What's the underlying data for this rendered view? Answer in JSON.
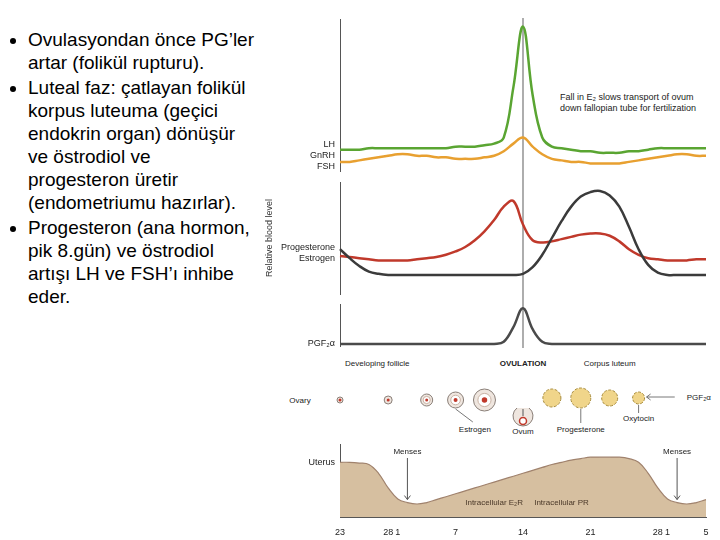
{
  "bullets": [
    "Ovulasyondan önce PG’ler artar (folikül rupturu).",
    "Luteal faz: çatlayan folikül korpus luteuma (geçici endokrin organ) dönüşür ve östrodiol ve progesteron üretir (endometriumu hazırlar).",
    "Progesteron (ana hormon, pik 8.gün) ve östrodiol artışı LH ve FSH’ı inhibe eder."
  ],
  "chart_data": [
    {
      "type": "line",
      "categories": [
        23,
        null,
        null,
        null,
        null,
        28,
        1,
        null,
        null,
        null,
        null,
        null,
        7,
        null,
        null,
        null,
        null,
        null,
        null,
        14,
        null,
        null,
        null,
        null,
        null,
        null,
        21,
        null,
        null,
        null,
        null,
        null,
        null,
        28,
        1,
        null,
        null,
        null,
        5
      ],
      "series": [
        {
          "name": "LH",
          "color": "#5aa532",
          "values": [
            14,
            14,
            14,
            15,
            15,
            15,
            15,
            15,
            15,
            15,
            15,
            15,
            16,
            16,
            16,
            17,
            18,
            22,
            55,
            95,
            50,
            22,
            16,
            15,
            14,
            13,
            13,
            12,
            12,
            12,
            13,
            13,
            14,
            15,
            15,
            15,
            15,
            15,
            15
          ]
        },
        {
          "name": "FSH",
          "color": "#e8a030",
          "values": [
            6,
            6,
            7,
            8,
            9,
            10,
            11,
            11,
            10,
            10,
            9,
            9,
            8,
            8,
            8,
            9,
            10,
            13,
            18,
            22,
            16,
            11,
            8,
            7,
            6,
            6,
            5,
            5,
            5,
            5,
            6,
            7,
            8,
            9,
            10,
            11,
            11,
            10,
            10
          ]
        }
      ],
      "ylim": [
        0,
        100
      ],
      "tick_labels": false
    },
    {
      "type": "line",
      "y_label": "Relative blood level",
      "categories": [
        23,
        null,
        null,
        null,
        null,
        28,
        1,
        null,
        null,
        null,
        null,
        null,
        7,
        null,
        null,
        null,
        null,
        null,
        null,
        14,
        null,
        null,
        null,
        null,
        null,
        null,
        21,
        null,
        null,
        null,
        null,
        null,
        null,
        28,
        1,
        null,
        null,
        null,
        5
      ],
      "series": [
        {
          "name": "Progesterone",
          "color": "#3b3b3b",
          "values": [
            40,
            32,
            25,
            20,
            18,
            17,
            17,
            17,
            17,
            17,
            17,
            17,
            17,
            17,
            17,
            17,
            17,
            17,
            17,
            18,
            24,
            35,
            50,
            65,
            78,
            87,
            91,
            92,
            88,
            78,
            60,
            40,
            26,
            19,
            17,
            17,
            17,
            17,
            17
          ]
        },
        {
          "name": "Estrogen",
          "color": "#c0392b",
          "values": [
            34,
            33,
            32,
            31,
            30,
            30,
            30,
            30,
            31,
            32,
            33,
            35,
            38,
            42,
            48,
            56,
            66,
            78,
            83,
            62,
            48,
            46,
            47,
            49,
            51,
            53,
            54,
            54,
            52,
            47,
            40,
            35,
            32,
            31,
            30,
            30,
            30,
            31,
            31
          ]
        }
      ],
      "ylim": [
        0,
        100
      ],
      "tick_labels": false
    },
    {
      "type": "line",
      "categories": [
        23,
        null,
        null,
        null,
        null,
        28,
        1,
        null,
        null,
        null,
        null,
        null,
        7,
        null,
        null,
        null,
        null,
        null,
        null,
        14,
        null,
        null,
        null,
        null,
        null,
        null,
        21,
        null,
        null,
        null,
        null,
        null,
        null,
        28,
        1,
        null,
        null,
        null,
        5
      ],
      "series": [
        {
          "name": "PGF₂α",
          "color": "#4a4a4a",
          "values": [
            5,
            5,
            5,
            5,
            5,
            5,
            5,
            5,
            5,
            5,
            5,
            5,
            5,
            5,
            5,
            5,
            5,
            10,
            45,
            90,
            40,
            10,
            5,
            5,
            5,
            5,
            5,
            5,
            5,
            5,
            5,
            5,
            5,
            5,
            5,
            5,
            5,
            5,
            5
          ]
        }
      ],
      "ylim": [
        0,
        100
      ],
      "tick_labels": false
    },
    {
      "type": "area",
      "categories": [
        23,
        null,
        null,
        null,
        null,
        28,
        1,
        null,
        null,
        null,
        null,
        null,
        7,
        null,
        null,
        null,
        null,
        null,
        null,
        14,
        null,
        null,
        null,
        null,
        null,
        null,
        21,
        null,
        null,
        null,
        null,
        null,
        null,
        28,
        1,
        null,
        null,
        null,
        5
      ],
      "series": [
        {
          "name": "Uterus",
          "color": "#d6bfa0",
          "values": [
            75,
            75,
            74,
            72,
            60,
            40,
            25,
            20,
            18,
            20,
            24,
            28,
            32,
            36,
            40,
            44,
            48,
            52,
            56,
            60,
            64,
            68,
            72,
            75,
            78,
            80,
            82,
            82,
            82,
            82,
            80,
            75,
            60,
            40,
            25,
            20,
            18,
            20,
            24
          ]
        }
      ],
      "ylim": [
        0,
        100
      ],
      "tick_labels": "x"
    }
  ],
  "labels": {
    "gnrh": "GnRH",
    "note": "Fall in E₂ slows transport of ovum down fallopian tube for fertilization",
    "ovulation": {
      "text": "OVULATION",
      "x": 14
    },
    "ovary": "Ovary",
    "developing_follicle": "Developing follicle",
    "corpus_luteum": "Corpus luteum",
    "ovary_products": [
      "Estrogen",
      "Ovum",
      "Progesterone",
      "Oxytocin",
      "PGF₂α"
    ],
    "menses": [
      "Menses",
      "Menses"
    ],
    "receptors": [
      "Intracellular E₂R",
      "Intracellular PR"
    ]
  }
}
